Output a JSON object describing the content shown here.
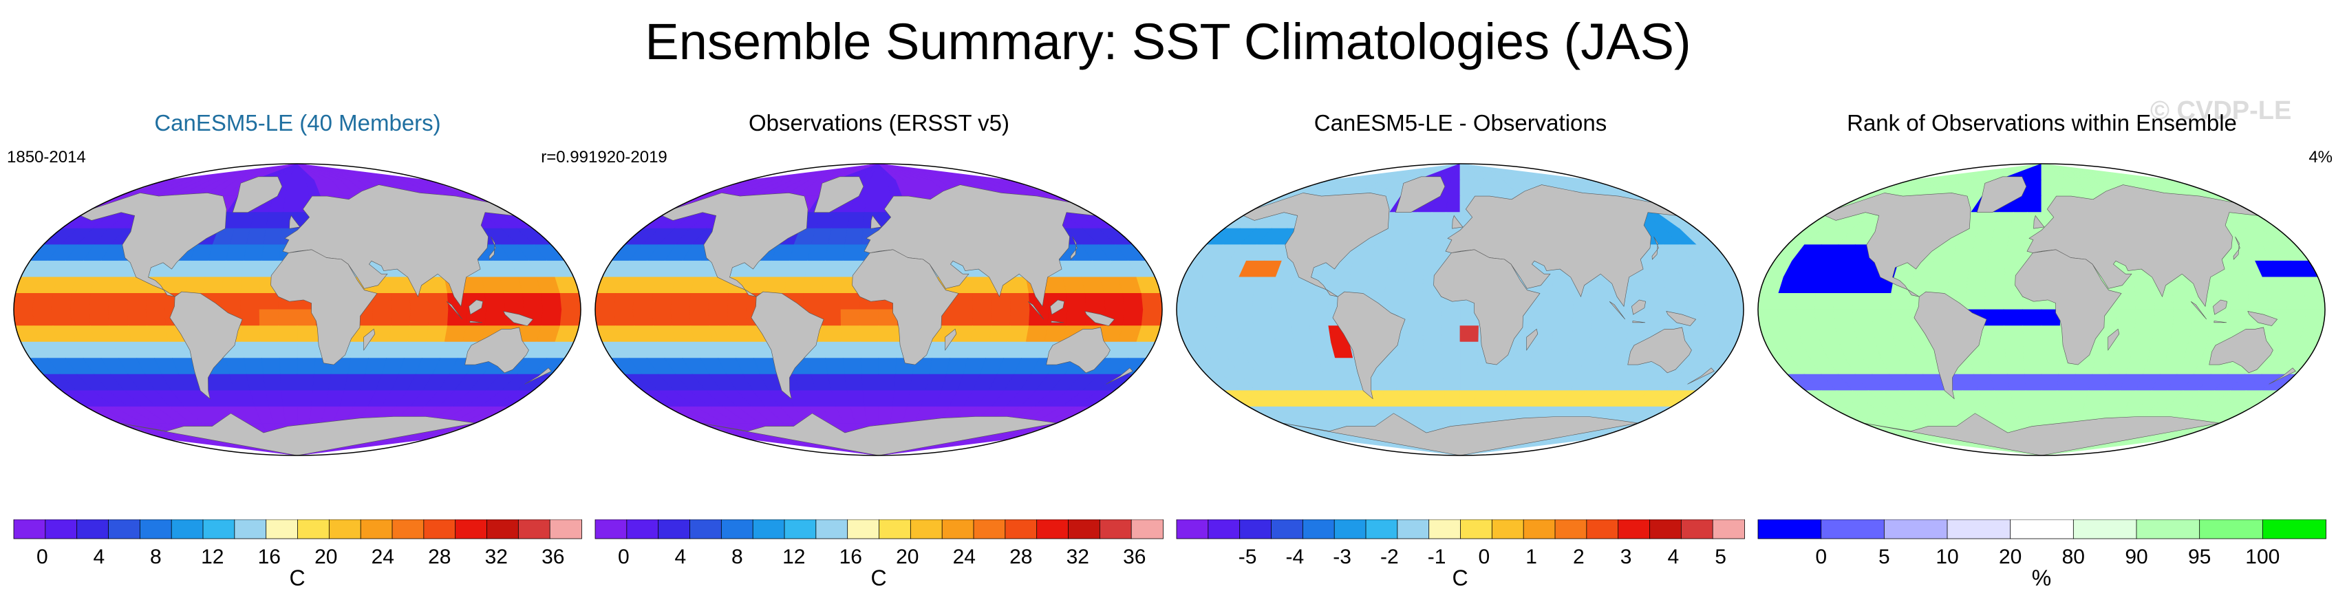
{
  "main_title": "Ensemble Summary: SST Climatologies (JAS)",
  "watermark": "© CVDP-LE",
  "colors": {
    "land": "#c0c0c0",
    "sst_scale": [
      "#7f21ef",
      "#5a1ef0",
      "#3a2ae6",
      "#2d55e0",
      "#1f78e6",
      "#1e9ae9",
      "#33b8f0",
      "#9ad3ef",
      "#fdf7b5",
      "#fde14f",
      "#fbc02a",
      "#f99d1b",
      "#f7781a",
      "#f24e14",
      "#e8180e",
      "#c5150d",
      "#d63a3a",
      "#f4a6a6"
    ],
    "diff_scale": [
      "#7f21ef",
      "#5a1ef0",
      "#3a2ae6",
      "#2d55e0",
      "#1f78e6",
      "#1e9ae9",
      "#33b8f0",
      "#9ad3ef",
      "#fdf7b5",
      "#fde14f",
      "#fbc02a",
      "#f99d1b",
      "#f7781a",
      "#f24e14",
      "#e8180e",
      "#c5150d",
      "#d63a3a",
      "#f4a6a6"
    ],
    "rank_scale": [
      "#0000ff",
      "#6666ff",
      "#b3b3ff",
      "#e0e0ff",
      "#ffffff",
      "#e0ffe0",
      "#b3ffb3",
      "#80ff80",
      "#00f000"
    ]
  },
  "chart_data": [
    {
      "type": "heatmap",
      "title": "CanESM5-LE (40 Members)",
      "title_color": "#1f6fa0",
      "left_label": "1850-2014",
      "right_label": "r=0.99",
      "field": "sst",
      "colorbar": {
        "ticks": [
          "0",
          "4",
          "8",
          "12",
          "16",
          "20",
          "24",
          "28",
          "32",
          "36"
        ],
        "unit": "C",
        "min": -2,
        "max": 38
      }
    },
    {
      "type": "heatmap",
      "title": "Observations (ERSST v5)",
      "title_color": "#000000",
      "left_label": "1920-2019",
      "right_label": "",
      "field": "sst",
      "colorbar": {
        "ticks": [
          "0",
          "4",
          "8",
          "12",
          "16",
          "20",
          "24",
          "28",
          "32",
          "36"
        ],
        "unit": "C",
        "min": -2,
        "max": 38
      }
    },
    {
      "type": "heatmap",
      "title": "CanESM5-LE - Observations",
      "title_color": "#000000",
      "left_label": "",
      "right_label": "",
      "field": "diff",
      "colorbar": {
        "ticks": [
          "-5",
          "-4",
          "-3",
          "-2",
          "-1",
          "0",
          "1",
          "2",
          "3",
          "4",
          "5"
        ],
        "unit": "C",
        "min": -6,
        "max": 6
      }
    },
    {
      "type": "heatmap",
      "title": "Rank of Observations within Ensemble",
      "title_color": "#000000",
      "left_label": "",
      "right_label": "4%",
      "field": "rank",
      "colorbar": {
        "ticks": [
          "0",
          "5",
          "10",
          "20",
          "80",
          "90",
          "95",
          "100"
        ],
        "unit": "%",
        "boundaries": [
          0,
          5,
          10,
          20,
          80,
          90,
          95,
          100
        ]
      }
    }
  ]
}
